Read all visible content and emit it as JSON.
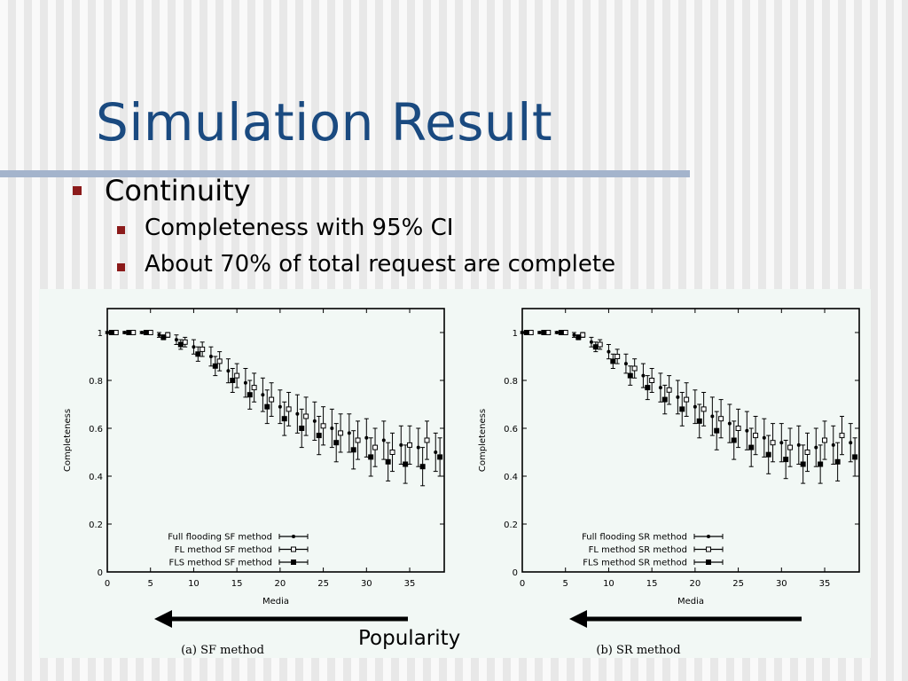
{
  "slide": {
    "title": "Simulation Result",
    "bullets": [
      {
        "text": "Continuity",
        "level": 1
      },
      {
        "text": "Completeness with 95% CI",
        "level": 2
      },
      {
        "text": "About 70% of total request are complete",
        "level": 2
      }
    ],
    "popularity_label": "Popularity",
    "colors": {
      "title": "#1a4a80",
      "bullet": "#8b1a1a",
      "rule": "#a4b4cc"
    }
  },
  "chart_data": [
    {
      "type": "scatter",
      "caption": "(a) SF method",
      "xlabel": "Media",
      "ylabel": "Completeness",
      "xlim": [
        0,
        39
      ],
      "ylim": [
        0,
        1.1
      ],
      "xticks": [
        0,
        5,
        10,
        15,
        20,
        25,
        30,
        35
      ],
      "yticks": [
        0,
        0.2,
        0.4,
        0.6,
        0.8,
        1
      ],
      "legend_position": "bottom-left",
      "error_bars": "95% CI",
      "series": [
        {
          "name": "Full flooding SF method",
          "marker": "filled-small",
          "x": [
            0,
            2,
            4,
            6,
            8,
            10,
            12,
            14,
            16,
            18,
            20,
            22,
            24,
            26,
            28,
            30,
            32,
            34,
            36,
            38
          ],
          "y": [
            1.0,
            1.0,
            1.0,
            0.99,
            0.97,
            0.94,
            0.9,
            0.84,
            0.79,
            0.74,
            0.69,
            0.66,
            0.63,
            0.6,
            0.58,
            0.56,
            0.55,
            0.53,
            0.52,
            0.5
          ],
          "ci": [
            0.004,
            0.004,
            0.004,
            0.01,
            0.02,
            0.03,
            0.04,
            0.05,
            0.06,
            0.07,
            0.07,
            0.08,
            0.08,
            0.08,
            0.08,
            0.08,
            0.08,
            0.08,
            0.08,
            0.08
          ]
        },
        {
          "name": "FL method SF method",
          "marker": "open-square",
          "x": [
            1,
            3,
            5,
            7,
            9,
            11,
            13,
            15,
            17,
            19,
            21,
            23,
            25,
            27,
            29,
            31,
            33,
            35,
            37
          ],
          "y": [
            1.0,
            1.0,
            1.0,
            0.99,
            0.96,
            0.93,
            0.88,
            0.82,
            0.77,
            0.72,
            0.68,
            0.65,
            0.61,
            0.58,
            0.55,
            0.52,
            0.5,
            0.53,
            0.55
          ],
          "ci": [
            0.004,
            0.004,
            0.004,
            0.01,
            0.02,
            0.03,
            0.04,
            0.05,
            0.06,
            0.07,
            0.07,
            0.08,
            0.08,
            0.08,
            0.08,
            0.08,
            0.08,
            0.08,
            0.08
          ]
        },
        {
          "name": "FLS method SF method",
          "marker": "filled-square",
          "x": [
            0.5,
            2.5,
            4.5,
            6.5,
            8.5,
            10.5,
            12.5,
            14.5,
            16.5,
            18.5,
            20.5,
            22.5,
            24.5,
            26.5,
            28.5,
            30.5,
            32.5,
            34.5,
            36.5,
            38.5
          ],
          "y": [
            1.0,
            1.0,
            1.0,
            0.98,
            0.95,
            0.91,
            0.86,
            0.8,
            0.74,
            0.69,
            0.64,
            0.6,
            0.57,
            0.54,
            0.51,
            0.48,
            0.46,
            0.45,
            0.44,
            0.48
          ],
          "ci": [
            0.004,
            0.004,
            0.004,
            0.01,
            0.02,
            0.03,
            0.04,
            0.05,
            0.06,
            0.07,
            0.07,
            0.08,
            0.08,
            0.08,
            0.08,
            0.08,
            0.08,
            0.08,
            0.08,
            0.08
          ]
        }
      ]
    },
    {
      "type": "scatter",
      "caption": "(b) SR method",
      "xlabel": "Media",
      "ylabel": "Completeness",
      "xlim": [
        0,
        39
      ],
      "ylim": [
        0,
        1.1
      ],
      "xticks": [
        0,
        5,
        10,
        15,
        20,
        25,
        30,
        35
      ],
      "yticks": [
        0,
        0.2,
        0.4,
        0.6,
        0.8,
        1
      ],
      "legend_position": "bottom-left",
      "error_bars": "95% CI",
      "series": [
        {
          "name": "Full flooding SR method",
          "marker": "filled-small",
          "x": [
            0,
            2,
            4,
            6,
            8,
            10,
            12,
            14,
            16,
            18,
            20,
            22,
            24,
            26,
            28,
            30,
            32,
            34,
            36,
            38
          ],
          "y": [
            1.0,
            1.0,
            1.0,
            0.99,
            0.96,
            0.92,
            0.87,
            0.82,
            0.77,
            0.73,
            0.69,
            0.65,
            0.62,
            0.59,
            0.56,
            0.54,
            0.53,
            0.52,
            0.53,
            0.54
          ],
          "ci": [
            0.004,
            0.004,
            0.004,
            0.01,
            0.02,
            0.03,
            0.04,
            0.05,
            0.06,
            0.07,
            0.07,
            0.08,
            0.08,
            0.08,
            0.08,
            0.08,
            0.08,
            0.08,
            0.08,
            0.08
          ]
        },
        {
          "name": "FL method SR method",
          "marker": "open-square",
          "x": [
            1,
            3,
            5,
            7,
            9,
            11,
            13,
            15,
            17,
            19,
            21,
            23,
            25,
            27,
            29,
            31,
            33,
            35,
            37
          ],
          "y": [
            1.0,
            1.0,
            1.0,
            0.99,
            0.95,
            0.9,
            0.85,
            0.8,
            0.76,
            0.72,
            0.68,
            0.64,
            0.6,
            0.57,
            0.54,
            0.52,
            0.5,
            0.55,
            0.57
          ],
          "ci": [
            0.004,
            0.004,
            0.004,
            0.01,
            0.02,
            0.03,
            0.04,
            0.05,
            0.06,
            0.07,
            0.07,
            0.08,
            0.08,
            0.08,
            0.08,
            0.08,
            0.08,
            0.08,
            0.08
          ]
        },
        {
          "name": "FLS method SR method",
          "marker": "filled-square",
          "x": [
            0.5,
            2.5,
            4.5,
            6.5,
            8.5,
            10.5,
            12.5,
            14.5,
            16.5,
            18.5,
            20.5,
            22.5,
            24.5,
            26.5,
            28.5,
            30.5,
            32.5,
            34.5,
            36.5,
            38.5
          ],
          "y": [
            1.0,
            1.0,
            1.0,
            0.98,
            0.94,
            0.88,
            0.82,
            0.77,
            0.72,
            0.68,
            0.63,
            0.59,
            0.55,
            0.52,
            0.49,
            0.47,
            0.45,
            0.45,
            0.46,
            0.48
          ],
          "ci": [
            0.004,
            0.004,
            0.004,
            0.01,
            0.02,
            0.03,
            0.04,
            0.05,
            0.06,
            0.07,
            0.07,
            0.08,
            0.08,
            0.08,
            0.08,
            0.08,
            0.08,
            0.08,
            0.08,
            0.08
          ]
        }
      ]
    }
  ]
}
